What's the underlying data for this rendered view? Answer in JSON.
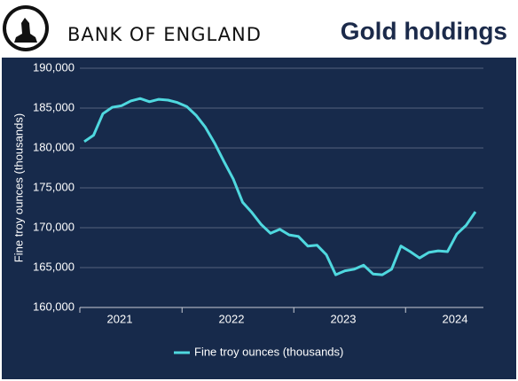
{
  "header": {
    "brand": "BANK OF ENGLAND"
  },
  "chart_data": {
    "type": "line",
    "title": "Gold holdings",
    "y_label": "Fine troy ounces (thousands)",
    "categories": [
      null,
      null,
      null,
      null,
      "2021",
      null,
      null,
      null,
      null,
      null,
      null,
      null,
      null,
      null,
      null,
      null,
      "2022",
      null,
      null,
      null,
      null,
      null,
      null,
      null,
      null,
      null,
      null,
      null,
      "2023",
      null,
      null,
      null,
      null,
      null,
      null,
      null,
      null,
      null,
      null,
      null,
      "2024",
      null,
      null
    ],
    "series": [
      {
        "name": "Fine troy ounces (thousands)",
        "color": "#4fd8df",
        "values": [
          180800,
          181600,
          184300,
          185100,
          185300,
          185900,
          186200,
          185800,
          186100,
          186000,
          185700,
          185200,
          184100,
          182600,
          180600,
          178300,
          176100,
          173200,
          171900,
          170400,
          169300,
          169800,
          169100,
          168900,
          167700,
          167800,
          166600,
          164100,
          164600,
          164800,
          165300,
          164200,
          164100,
          164800,
          167700,
          167000,
          166200,
          166900,
          167100,
          167000,
          169200,
          170300,
          172000
        ]
      }
    ],
    "ylim": [
      160000,
      190000
    ],
    "yticks": [
      {
        "value": 160000,
        "label": "160,000"
      },
      {
        "value": 165000,
        "label": "165,000"
      },
      {
        "value": 170000,
        "label": "170,000"
      },
      {
        "value": 175000,
        "label": "175,000"
      },
      {
        "value": 180000,
        "label": "180,000"
      },
      {
        "value": 185000,
        "label": "185,000"
      },
      {
        "value": 190000,
        "label": "190,000"
      }
    ],
    "grid": true,
    "legend": "bottom"
  }
}
